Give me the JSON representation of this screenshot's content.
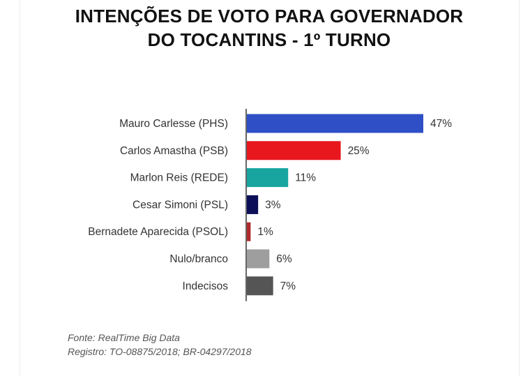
{
  "chart_data": {
    "type": "bar",
    "orientation": "horizontal",
    "title_lines": [
      "INTENÇÕES DE VOTO PARA GOVERNADOR",
      "DO TOCANTINS - 1º TURNO"
    ],
    "categories": [
      "Mauro Carlesse (PHS)",
      "Carlos Amastha (PSB)",
      "Marlon Reis (REDE)",
      "Cesar Simoni (PSL)",
      "Bernadete Aparecida (PSOL)",
      "Nulo/branco",
      "Indecisos"
    ],
    "values": [
      47,
      25,
      11,
      3,
      1,
      6,
      7
    ],
    "value_labels": [
      "47%",
      "25%",
      "11%",
      "3%",
      "1%",
      "6%",
      "7%"
    ],
    "colors": [
      "#2e4fc6",
      "#e8171d",
      "#18a5a0",
      "#0b0f57",
      "#b02a2a",
      "#9e9e9e",
      "#555555"
    ],
    "unit": "%",
    "xlim": [
      0,
      50
    ]
  },
  "footer": {
    "source": "Fonte: RealTime Big Data",
    "registry": "Registro: TO-08875/2018; BR-04297/2018"
  }
}
